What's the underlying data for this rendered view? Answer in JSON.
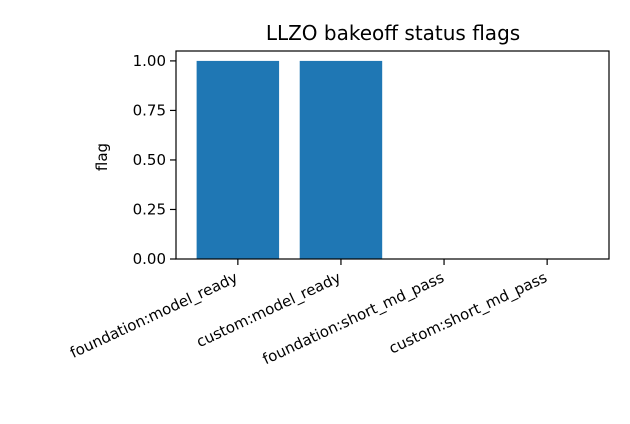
{
  "chart_data": {
    "type": "bar",
    "title": "LLZO bakeoff status flags",
    "xlabel": "",
    "ylabel": "flag",
    "categories": [
      "foundation:model_ready",
      "custom:model_ready",
      "foundation:short_md_pass",
      "custom:short_md_pass"
    ],
    "values": [
      1,
      1,
      0,
      0
    ],
    "ylim": [
      0,
      1.05
    ],
    "yticks": [
      0.0,
      0.25,
      0.5,
      0.75,
      1.0
    ],
    "ytick_labels": [
      "0.00",
      "0.25",
      "0.50",
      "0.75",
      "1.00"
    ],
    "grid": false,
    "legend": "none",
    "bar_color": "#1f77b4"
  }
}
